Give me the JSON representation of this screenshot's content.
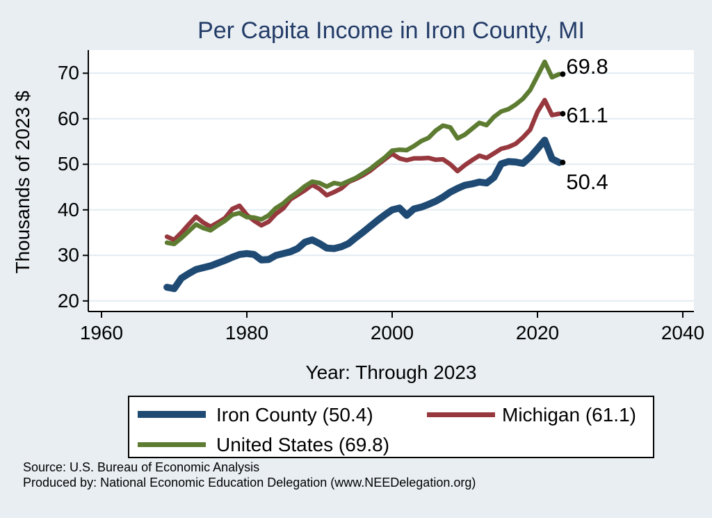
{
  "title": "Per Capita Income in Iron County, MI",
  "chart_data": {
    "type": "line",
    "title": "Per Capita Income in Iron County, MI",
    "xlabel": "Year: Through 2023",
    "ylabel": "Thousands of 2023 $",
    "grid": true,
    "legend_position": "bottom",
    "xlim": [
      1958,
      2042
    ],
    "ylim": [
      17.5,
      75
    ],
    "x_ticks": [
      1960,
      1980,
      2000,
      2020,
      2040
    ],
    "y_ticks": [
      20,
      30,
      40,
      50,
      60,
      70
    ],
    "x": [
      1969,
      1970,
      1971,
      1972,
      1973,
      1974,
      1975,
      1976,
      1977,
      1978,
      1979,
      1980,
      1981,
      1982,
      1983,
      1984,
      1985,
      1986,
      1987,
      1988,
      1989,
      1990,
      1991,
      1992,
      1993,
      1994,
      1995,
      1996,
      1997,
      1998,
      1999,
      2000,
      2001,
      2002,
      2003,
      2004,
      2005,
      2006,
      2007,
      2008,
      2009,
      2010,
      2011,
      2012,
      2013,
      2014,
      2015,
      2016,
      2017,
      2018,
      2019,
      2020,
      2021,
      2022,
      2023
    ],
    "series": [
      {
        "name": "Iron County",
        "end_label": "50.4",
        "final_value": 50.4,
        "color": "#1f4a73",
        "line_width": 10,
        "values": [
          23.0,
          22.7,
          25.0,
          26.0,
          26.9,
          27.3,
          27.7,
          28.3,
          28.9,
          29.6,
          30.2,
          30.4,
          30.2,
          29.0,
          29.1,
          30.0,
          30.4,
          30.8,
          31.5,
          32.9,
          33.4,
          32.6,
          31.6,
          31.5,
          31.9,
          32.6,
          33.9,
          35.1,
          36.4,
          37.7,
          38.9,
          40.0,
          40.4,
          38.8,
          40.2,
          40.6,
          41.2,
          41.9,
          42.8,
          43.9,
          44.7,
          45.4,
          45.7,
          46.1,
          45.9,
          47.1,
          50.1,
          50.6,
          50.5,
          50.2,
          51.6,
          53.4,
          55.3,
          51.2,
          50.4
        ]
      },
      {
        "name": "Michigan",
        "end_label": "61.1",
        "final_value": 61.1,
        "color": "#96383e",
        "line_width": 6.5,
        "values": [
          34.1,
          33.4,
          35.0,
          36.8,
          38.5,
          37.2,
          36.3,
          37.2,
          38.2,
          40.2,
          40.9,
          38.9,
          37.6,
          36.6,
          37.4,
          39.1,
          40.3,
          42.3,
          43.3,
          44.3,
          45.5,
          44.6,
          43.2,
          43.9,
          44.7,
          46.1,
          46.8,
          47.6,
          48.6,
          49.9,
          51.1,
          52.3,
          51.3,
          50.9,
          51.3,
          51.3,
          51.4,
          51.0,
          51.1,
          50.0,
          48.5,
          49.8,
          50.9,
          51.9,
          51.4,
          52.4,
          53.4,
          53.8,
          54.5,
          55.9,
          57.6,
          61.5,
          64.1,
          60.8,
          61.1
        ]
      },
      {
        "name": "United States",
        "end_label": "69.8",
        "final_value": 69.8,
        "color": "#5d7c32",
        "line_width": 6.5,
        "values": [
          32.8,
          32.5,
          33.8,
          35.3,
          36.8,
          36.0,
          35.5,
          36.6,
          37.6,
          38.9,
          39.3,
          38.4,
          38.3,
          37.9,
          38.8,
          40.4,
          41.4,
          42.8,
          43.9,
          45.2,
          46.2,
          45.9,
          45.1,
          45.9,
          45.6,
          46.3,
          47.0,
          48.0,
          49.0,
          50.3,
          51.5,
          53.0,
          53.2,
          53.1,
          54.0,
          55.1,
          55.8,
          57.4,
          58.5,
          58.1,
          55.7,
          56.5,
          57.8,
          59.1,
          58.6,
          60.4,
          61.6,
          62.1,
          63.1,
          64.4,
          66.3,
          69.4,
          72.5,
          69.1,
          69.8
        ]
      }
    ]
  },
  "legend": {
    "items": [
      {
        "label": "Iron County (50.4)",
        "color": "#1f4a73",
        "swatch_height": 10
      },
      {
        "label": "Michigan (61.1)",
        "color": "#96383e",
        "swatch_height": 7
      },
      {
        "label": "United States (69.8)",
        "color": "#5d7c32",
        "swatch_height": 7
      }
    ]
  },
  "footer": {
    "source_line": "Source: U.S. Bureau of Economic Analysis",
    "produced_line": "Produced by: National Economic Education Delegation (www.NEEDelegation.org)"
  },
  "style_colors": {
    "background": "#e8eef2",
    "plot_background": "#ffffff",
    "gridline": "#e2ecf2",
    "axis": "#000000",
    "title_text": "#243c68",
    "end_marker": "#000000"
  }
}
